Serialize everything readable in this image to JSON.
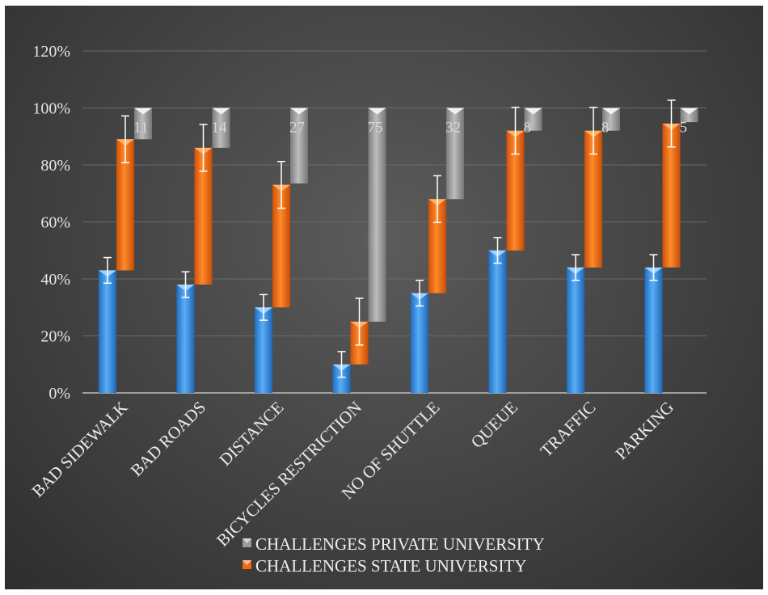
{
  "chart_data": {
    "type": "bar",
    "title": "",
    "xlabel": "",
    "ylabel": "",
    "ylim": [
      0,
      1.2
    ],
    "y_ticks": [
      "0%",
      "20%",
      "40%",
      "60%",
      "80%",
      "100%",
      "120%"
    ],
    "y_tick_values": [
      0,
      0.2,
      0.4,
      0.6,
      0.8,
      1.0,
      1.2
    ],
    "grid": true,
    "legend_position": "bottom",
    "categories": [
      "BAD SIDEWALK",
      "BAD ROADS",
      "DISTANCE",
      "BICYCLES RESTRICTION",
      "NO OF SHUTTLE",
      "QUEUE",
      "TRAFFIC",
      "PARKING"
    ],
    "series": [
      {
        "key": "blue",
        "name": "",
        "color": "#3a8fe0",
        "values": [
          0.43,
          0.38,
          0.3,
          0.1,
          0.35,
          0.5,
          0.44,
          0.44
        ],
        "error": [
          0.045,
          0.045,
          0.045,
          0.045,
          0.045,
          0.045,
          0.045,
          0.045
        ],
        "in_legend": false
      },
      {
        "key": "orange",
        "name": "CHALLENGES STATE UNIVERSITY",
        "color": "#f26a0f",
        "bottoms": [
          0.43,
          0.38,
          0.3,
          0.1,
          0.35,
          0.5,
          0.44,
          0.44
        ],
        "tops": [
          0.89,
          0.86,
          0.73,
          0.25,
          0.68,
          0.92,
          0.92,
          0.945
        ],
        "error": [
          0.082,
          0.082,
          0.082,
          0.082,
          0.082,
          0.082,
          0.082,
          0.082
        ],
        "in_legend": true
      },
      {
        "key": "gray",
        "name": "CHALLENGES PRIVATE UNIVERSITY",
        "color": "#9a9a9a",
        "bottoms": [
          0.89,
          0.86,
          0.735,
          0.25,
          0.68,
          0.92,
          0.92,
          0.95
        ],
        "tops": [
          1.0,
          1.0,
          1.0,
          1.0,
          1.0,
          1.0,
          1.0,
          1.0
        ],
        "data_labels": [
          "11",
          "14",
          "27",
          "75",
          "32",
          "8",
          "8",
          "5"
        ],
        "in_legend": true
      }
    ]
  },
  "legend": {
    "items": [
      {
        "label": "CHALLENGES PRIVATE UNIVERSITY",
        "color": "#9a9a9a"
      },
      {
        "label": "CHALLENGES STATE UNIVERSITY",
        "color": "#f26a0f"
      }
    ]
  }
}
